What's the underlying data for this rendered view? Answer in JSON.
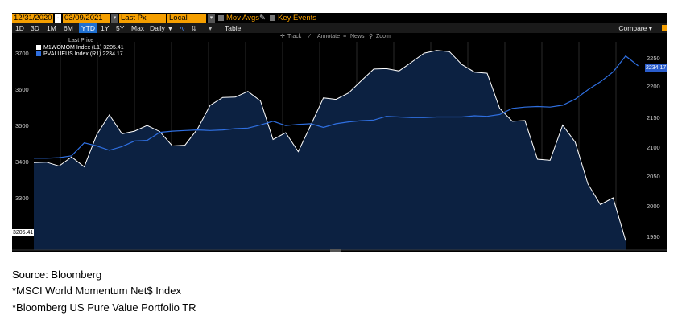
{
  "toolbar": {
    "start_date": "12/31/2020",
    "end_date": "03/09/2021",
    "field": "Last Px",
    "currency": "Local CCY",
    "mov_avgs_label": "Mov Avgs",
    "key_events_label": "Key Events"
  },
  "range_buttons": [
    "1D",
    "3D",
    "1M",
    "6M",
    "YTD",
    "1Y",
    "5Y",
    "Max"
  ],
  "range_selected": "YTD",
  "periodicity": "Daily ▼",
  "table_label": "Table",
  "compare_label": "Compare ▾",
  "chart_tools": {
    "track": "Track",
    "annotate": "Annotate",
    "news": "News",
    "zoom": "Zoom"
  },
  "footer": {
    "source": "Source: Bloomberg",
    "note1": "*MSCI World Momentum Net$ Index",
    "note2": "*Bloomberg US Pure Value Portfolio TR"
  },
  "chart_data": {
    "type": "area",
    "legend_title": "Last Price",
    "legend_placement": "top-left",
    "series": [
      {
        "name": "M1WOMOM Index (L1) 3205.41",
        "axis": "left",
        "color": "#ffffff",
        "fill": "#0c2141",
        "last_value": "3205.41",
        "values": [
          3411,
          3412,
          3402,
          3426,
          3400,
          3485,
          3537,
          3487,
          3494,
          3509,
          3493,
          3455,
          3457,
          3500,
          3562,
          3583,
          3584,
          3599,
          3574,
          3472,
          3490,
          3440,
          3510,
          3582,
          3578,
          3595,
          3627,
          3658,
          3659,
          3653,
          3676,
          3700,
          3707,
          3704,
          3670,
          3650,
          3647,
          3554,
          3520,
          3522,
          3420,
          3417,
          3510,
          3465,
          3355,
          3300,
          3318,
          3205
        ]
      },
      {
        "name": "PVALUEUS Index (R1) 2234.17",
        "axis": "right",
        "color": "#2f6fe0",
        "last_value": "2234.17",
        "values": [
          2084,
          2084,
          2085,
          2088,
          2109,
          2104,
          2097,
          2103,
          2112,
          2113,
          2126,
          2128,
          2129,
          2130,
          2129,
          2130,
          2132,
          2133,
          2138,
          2144,
          2137,
          2139,
          2140,
          2134,
          2140,
          2143,
          2145,
          2146,
          2152,
          2151,
          2150,
          2150,
          2151,
          2151,
          2151,
          2153,
          2152,
          2155,
          2165,
          2167,
          2168,
          2167,
          2170,
          2180,
          2195,
          2208,
          2224,
          2250,
          2234
        ]
      }
    ],
    "y_left": {
      "ticks": [
        3300,
        3400,
        3500,
        3600,
        3700
      ],
      "range": [
        3180,
        3730
      ]
    },
    "y_right": {
      "ticks": [
        1950,
        2000,
        2050,
        2100,
        2150,
        2200,
        2250
      ],
      "range": [
        1935,
        2273
      ]
    },
    "grid": "vertical"
  }
}
